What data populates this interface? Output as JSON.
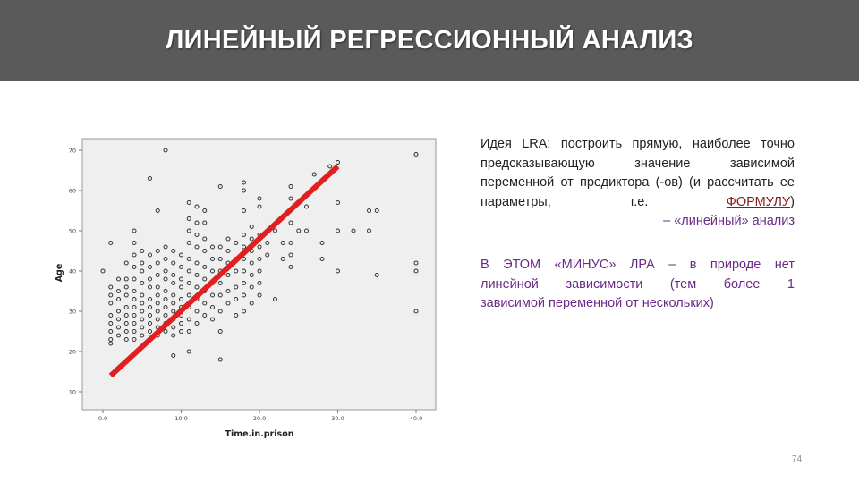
{
  "header": {
    "title": "ЛИНЕЙНЫЙ РЕГРЕССИОННЫЙ АНАЛИЗ",
    "bg_color": "#5a5a5a"
  },
  "chart_data": {
    "type": "scatter",
    "xlabel": "Time.in.prison",
    "ylabel": "Age",
    "x_ticks": [
      "0.0",
      "10.0",
      "20.0",
      "30.0",
      "40.0"
    ],
    "y_ticks": [
      "10",
      "20",
      "30",
      "40",
      "50",
      "60",
      "70"
    ],
    "xlim": [
      0,
      40
    ],
    "ylim": [
      10,
      70
    ],
    "grid": false,
    "point_color": "#333333",
    "trend_line": {
      "color": "#e02020",
      "x": [
        1,
        30
      ],
      "y": [
        14,
        66
      ]
    },
    "points": [
      [
        0,
        40
      ],
      [
        1,
        47
      ],
      [
        1,
        36
      ],
      [
        1,
        34
      ],
      [
        1,
        32
      ],
      [
        1,
        29
      ],
      [
        1,
        27
      ],
      [
        1,
        25
      ],
      [
        1,
        23
      ],
      [
        1,
        22
      ],
      [
        2,
        38
      ],
      [
        2,
        35
      ],
      [
        2,
        33
      ],
      [
        2,
        30
      ],
      [
        2,
        28
      ],
      [
        2,
        26
      ],
      [
        2,
        24
      ],
      [
        3,
        42
      ],
      [
        3,
        38
      ],
      [
        3,
        36
      ],
      [
        3,
        34
      ],
      [
        3,
        31
      ],
      [
        3,
        29
      ],
      [
        3,
        27
      ],
      [
        3,
        25
      ],
      [
        3,
        23
      ],
      [
        4,
        50
      ],
      [
        4,
        47
      ],
      [
        4,
        44
      ],
      [
        4,
        41
      ],
      [
        4,
        38
      ],
      [
        4,
        35
      ],
      [
        4,
        33
      ],
      [
        4,
        31
      ],
      [
        4,
        29
      ],
      [
        4,
        27
      ],
      [
        4,
        25
      ],
      [
        4,
        23
      ],
      [
        5,
        45
      ],
      [
        5,
        42
      ],
      [
        5,
        40
      ],
      [
        5,
        37
      ],
      [
        5,
        34
      ],
      [
        5,
        32
      ],
      [
        5,
        30
      ],
      [
        5,
        28
      ],
      [
        5,
        26
      ],
      [
        5,
        24
      ],
      [
        6,
        63
      ],
      [
        6,
        44
      ],
      [
        6,
        41
      ],
      [
        6,
        38
      ],
      [
        6,
        36
      ],
      [
        6,
        33
      ],
      [
        6,
        31
      ],
      [
        6,
        29
      ],
      [
        6,
        27
      ],
      [
        6,
        25
      ],
      [
        6,
        23
      ],
      [
        7,
        55
      ],
      [
        7,
        45
      ],
      [
        7,
        42
      ],
      [
        7,
        39
      ],
      [
        7,
        36
      ],
      [
        7,
        34
      ],
      [
        7,
        32
      ],
      [
        7,
        30
      ],
      [
        7,
        28
      ],
      [
        7,
        26
      ],
      [
        7,
        24
      ],
      [
        8,
        70
      ],
      [
        8,
        46
      ],
      [
        8,
        43
      ],
      [
        8,
        40
      ],
      [
        8,
        38
      ],
      [
        8,
        35
      ],
      [
        8,
        33
      ],
      [
        8,
        31
      ],
      [
        8,
        29
      ],
      [
        8,
        27
      ],
      [
        8,
        25
      ],
      [
        9,
        45
      ],
      [
        9,
        42
      ],
      [
        9,
        39
      ],
      [
        9,
        37
      ],
      [
        9,
        34
      ],
      [
        9,
        32
      ],
      [
        9,
        30
      ],
      [
        9,
        28
      ],
      [
        9,
        26
      ],
      [
        9,
        24
      ],
      [
        9,
        19
      ],
      [
        10,
        44
      ],
      [
        10,
        41
      ],
      [
        10,
        38
      ],
      [
        10,
        36
      ],
      [
        10,
        33
      ],
      [
        10,
        31
      ],
      [
        10,
        29
      ],
      [
        10,
        27
      ],
      [
        10,
        25
      ],
      [
        11,
        57
      ],
      [
        11,
        53
      ],
      [
        11,
        50
      ],
      [
        11,
        47
      ],
      [
        11,
        43
      ],
      [
        11,
        40
      ],
      [
        11,
        37
      ],
      [
        11,
        34
      ],
      [
        11,
        31
      ],
      [
        11,
        28
      ],
      [
        11,
        25
      ],
      [
        11,
        20
      ],
      [
        12,
        56
      ],
      [
        12,
        52
      ],
      [
        12,
        49
      ],
      [
        12,
        46
      ],
      [
        12,
        42
      ],
      [
        12,
        39
      ],
      [
        12,
        36
      ],
      [
        12,
        33
      ],
      [
        12,
        30
      ],
      [
        12,
        27
      ],
      [
        13,
        55
      ],
      [
        13,
        52
      ],
      [
        13,
        48
      ],
      [
        13,
        45
      ],
      [
        13,
        41
      ],
      [
        13,
        38
      ],
      [
        13,
        35
      ],
      [
        13,
        32
      ],
      [
        13,
        29
      ],
      [
        14,
        46
      ],
      [
        14,
        43
      ],
      [
        14,
        40
      ],
      [
        14,
        37
      ],
      [
        14,
        34
      ],
      [
        14,
        31
      ],
      [
        14,
        28
      ],
      [
        15,
        61
      ],
      [
        15,
        46
      ],
      [
        15,
        43
      ],
      [
        15,
        40
      ],
      [
        15,
        37
      ],
      [
        15,
        34
      ],
      [
        15,
        30
      ],
      [
        15,
        25
      ],
      [
        15,
        18
      ],
      [
        16,
        48
      ],
      [
        16,
        45
      ],
      [
        16,
        42
      ],
      [
        16,
        39
      ],
      [
        16,
        35
      ],
      [
        16,
        32
      ],
      [
        17,
        47
      ],
      [
        17,
        43
      ],
      [
        17,
        40
      ],
      [
        17,
        36
      ],
      [
        17,
        33
      ],
      [
        17,
        29
      ],
      [
        18,
        62
      ],
      [
        18,
        60
      ],
      [
        18,
        55
      ],
      [
        18,
        49
      ],
      [
        18,
        46
      ],
      [
        18,
        43
      ],
      [
        18,
        40
      ],
      [
        18,
        37
      ],
      [
        18,
        34
      ],
      [
        18,
        30
      ],
      [
        19,
        51
      ],
      [
        19,
        48
      ],
      [
        19,
        45
      ],
      [
        19,
        42
      ],
      [
        19,
        39
      ],
      [
        19,
        36
      ],
      [
        19,
        32
      ],
      [
        20,
        58
      ],
      [
        20,
        56
      ],
      [
        20,
        49
      ],
      [
        20,
        46
      ],
      [
        20,
        43
      ],
      [
        20,
        40
      ],
      [
        20,
        37
      ],
      [
        20,
        34
      ],
      [
        21,
        47
      ],
      [
        21,
        44
      ],
      [
        22,
        50
      ],
      [
        22,
        33
      ],
      [
        23,
        47
      ],
      [
        23,
        43
      ],
      [
        24,
        61
      ],
      [
        24,
        58
      ],
      [
        24,
        52
      ],
      [
        24,
        47
      ],
      [
        24,
        44
      ],
      [
        24,
        41
      ],
      [
        25,
        50
      ],
      [
        26,
        56
      ],
      [
        26,
        50
      ],
      [
        27,
        64
      ],
      [
        28,
        47
      ],
      [
        28,
        43
      ],
      [
        29,
        66
      ],
      [
        30,
        67
      ],
      [
        30,
        57
      ],
      [
        30,
        50
      ],
      [
        30,
        40
      ],
      [
        32,
        50
      ],
      [
        34,
        55
      ],
      [
        34,
        50
      ],
      [
        35,
        55
      ],
      [
        35,
        39
      ],
      [
        40,
        69
      ],
      [
        40,
        42
      ],
      [
        40,
        40
      ],
      [
        40,
        30
      ]
    ]
  },
  "text": {
    "p1_lines": [
      "Идея LRA: построить прямую, наиболее",
      "точно предсказывающую значение",
      "зависимой переменной от предиктора (-ов)"
    ],
    "p1_line4_prefix": "(и рассчитать ее параметры, т.е. ",
    "p1_line4_underlined": "ФОРМУЛУ",
    "p1_line4_suffix": ")",
    "p1_last": "– «линейный» анализ",
    "p2_line1": "В ЭТОМ «МИНУС» ЛРА – в природе нет",
    "p2_line2": "линейной зависимости (тем более 1",
    "p2_line3": "зависимой переменной от нескольких)"
  },
  "page_number": "74"
}
